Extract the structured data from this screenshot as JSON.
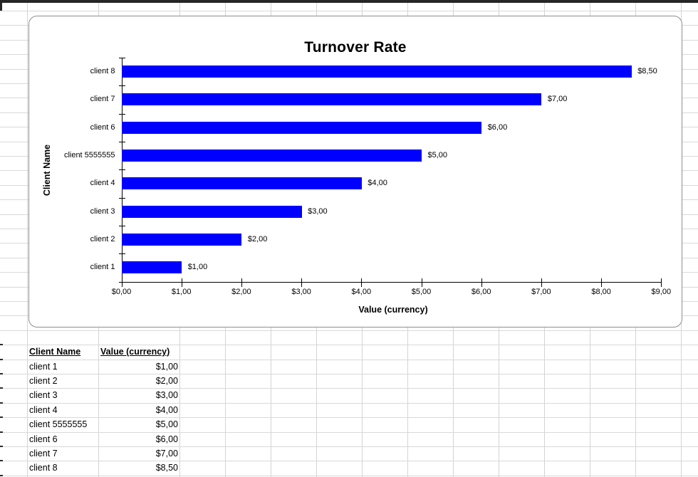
{
  "chart_data": {
    "type": "bar",
    "orientation": "horizontal",
    "title": "Turnover Rate",
    "xlabel": "Value (currency)",
    "ylabel": "Client Name",
    "categories": [
      "client 1",
      "client 2",
      "client 3",
      "client 4",
      "client 5555555",
      "client 6",
      "client 7",
      "client 8"
    ],
    "values": [
      1.0,
      2.0,
      3.0,
      4.0,
      5.0,
      6.0,
      7.0,
      8.5
    ],
    "value_labels": [
      "$1,00",
      "$2,00",
      "$3,00",
      "$4,00",
      "$5,00",
      "$6,00",
      "$7,00",
      "$8,50"
    ],
    "x_ticks": [
      "$0,00",
      "$1,00",
      "$2,00",
      "$3,00",
      "$4,00",
      "$5,00",
      "$6,00",
      "$7,00",
      "$8,00",
      "$9,00"
    ],
    "xlim": [
      0,
      9
    ],
    "bar_color": "#0000FF",
    "grid": false,
    "legend": false,
    "category_order_top_to_bottom": [
      "client 8",
      "client 7",
      "client 6",
      "client 5555555",
      "client 4",
      "client 3",
      "client 2",
      "client 1"
    ]
  },
  "table": {
    "headers": [
      "Client Name",
      "Value (currency)"
    ],
    "rows": [
      [
        "client 1",
        "$1,00"
      ],
      [
        "client 2",
        "$2,00"
      ],
      [
        "client 3",
        "$3,00"
      ],
      [
        "client 4",
        "$4,00"
      ],
      [
        "client 5555555",
        "$5,00"
      ],
      [
        "client 6",
        "$6,00"
      ],
      [
        "client 7",
        "$7,00"
      ],
      [
        "client 8",
        "$8,50"
      ]
    ]
  }
}
